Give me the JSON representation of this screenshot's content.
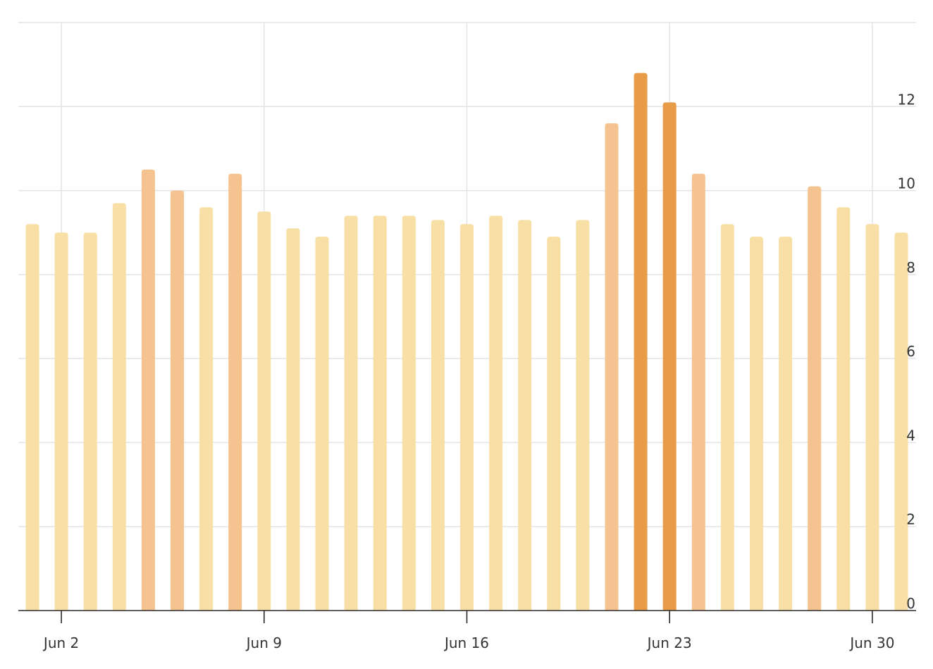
{
  "chart_data": {
    "type": "bar",
    "title": "",
    "xlabel": "",
    "ylabel": "",
    "ylim": [
      0,
      14
    ],
    "yticks": [
      0,
      2,
      4,
      6,
      8,
      10,
      12
    ],
    "y_axis_position": "right",
    "grid": true,
    "x_tick_labels": [
      "Jun 2",
      "Jun 9",
      "Jun 16",
      "Jun 23",
      "Jun 30"
    ],
    "categories": [
      "Jun 1",
      "Jun 2",
      "Jun 3",
      "Jun 4",
      "Jun 5",
      "Jun 6",
      "Jun 7",
      "Jun 8",
      "Jun 9",
      "Jun 10",
      "Jun 11",
      "Jun 12",
      "Jun 13",
      "Jun 14",
      "Jun 15",
      "Jun 16",
      "Jun 17",
      "Jun 18",
      "Jun 19",
      "Jun 20",
      "Jun 21",
      "Jun 22",
      "Jun 23",
      "Jun 24",
      "Jun 25",
      "Jun 26",
      "Jun 27",
      "Jun 28",
      "Jun 29",
      "Jun 30",
      "Jul 1"
    ],
    "values": [
      9.2,
      9.0,
      9.0,
      9.7,
      10.5,
      10.0,
      9.6,
      10.4,
      9.5,
      9.1,
      8.9,
      9.4,
      9.4,
      9.4,
      9.3,
      9.2,
      9.4,
      9.3,
      8.9,
      9.3,
      11.6,
      12.8,
      12.1,
      10.4,
      9.2,
      8.9,
      8.9,
      10.1,
      9.6,
      9.2,
      9.0
    ],
    "colors": {
      "low": "#f7dfa6",
      "mid": "#f4c38f",
      "high": "#e89c4a",
      "grid": "#e3e3e3",
      "axis": "#2b2b2b",
      "text": "#333333"
    }
  }
}
